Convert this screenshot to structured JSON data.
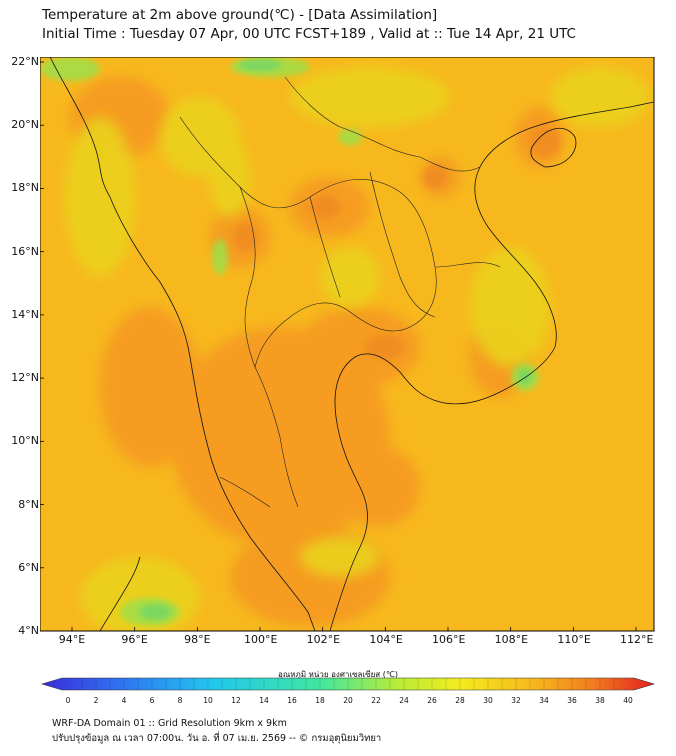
{
  "header": {
    "title_line1": "Temperature at 2m above ground(℃) - [Data Assimilation]",
    "title_line2": "Initial Time : Tuesday 07 Apr, 00 UTC FCST+189 , Valid at :: Tue 14 Apr, 21 UTC"
  },
  "map": {
    "lat_labels": [
      "22°N",
      "20°N",
      "18°N",
      "16°N",
      "14°N",
      "12°N",
      "10°N",
      "8°N",
      "6°N",
      "4°N"
    ],
    "lon_labels": [
      "94°E",
      "96°E",
      "98°E",
      "100°E",
      "102°E",
      "104°E",
      "106°E",
      "108°E",
      "110°E",
      "112°E"
    ],
    "colors": {
      "base": "#f7b81e",
      "warm": "#f59a22",
      "cool": "#e8d020",
      "green": "#7ed957",
      "frame": "#000000"
    }
  },
  "colorbar": {
    "title": "อุณหภูมิ หน่วย องศาเซลเซียส (℃)",
    "ticks": [
      "0",
      "2",
      "4",
      "6",
      "8",
      "10",
      "12",
      "14",
      "16",
      "18",
      "20",
      "22",
      "24",
      "26",
      "28",
      "30",
      "32",
      "34",
      "36",
      "38",
      "40"
    ]
  },
  "footer": {
    "line1": "WRF-DA Domain 01 :: Grid Resolution 9km x 9km",
    "line2": "ปรับปรุงข้อมูล ณ เวลา 07:00น. วัน อ. ที่ 07 เม.ย. 2569 -- © กรมอุตุนิยมวิทยา"
  }
}
